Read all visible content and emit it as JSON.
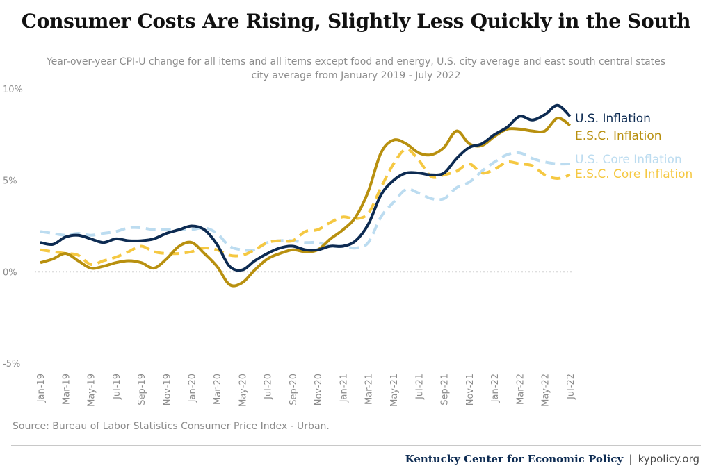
{
  "chart_data": {
    "type": "line",
    "title": "Consumer Costs Are Rising, Slightly Less Quickly in the South",
    "subtitle_lines": [
      "Year-over-year CPI-U change for all items and all items except food and energy, U.S. city average and east south central states",
      "city average from January 2019 - July 2022"
    ],
    "xlabel": "",
    "ylabel": "",
    "ylim": [
      -5,
      10
    ],
    "y_ticks": [
      "10%",
      "5%",
      "0%",
      "-5%"
    ],
    "y_tick_values": [
      10,
      5,
      0,
      -5
    ],
    "x_tick_labels": [
      "Jan-19",
      "Mar-19",
      "May-19",
      "Jul-19",
      "Sep-19",
      "Nov-19",
      "Jan-20",
      "Mar-20",
      "May-20",
      "Jul-20",
      "Sep-20",
      "Nov-20",
      "Jan-21",
      "Mar-21",
      "May-21",
      "Jul-21",
      "Sep-21",
      "Nov-21",
      "Jan-22",
      "Mar-22",
      "May-22",
      "Jul-22"
    ],
    "grid": false,
    "zero_line": "dotted",
    "legend": "direct labels at right end of lines",
    "series": [
      {
        "name": "U.S. Inflation",
        "color": "#0d2b52",
        "dash": "solid",
        "values": [
          1.6,
          1.5,
          1.9,
          2.0,
          1.8,
          1.6,
          1.8,
          1.7,
          1.7,
          1.8,
          2.1,
          2.3,
          2.5,
          2.3,
          1.5,
          0.3,
          0.1,
          0.6,
          1.0,
          1.3,
          1.4,
          1.2,
          1.2,
          1.4,
          1.4,
          1.7,
          2.6,
          4.2,
          5.0,
          5.4,
          5.4,
          5.3,
          5.4,
          6.2,
          6.8,
          7.0,
          7.5,
          7.9,
          8.5,
          8.3,
          8.6,
          9.1,
          8.5
        ]
      },
      {
        "name": "E.S.C. Inflation",
        "color": "#b8900f",
        "dash": "solid",
        "values": [
          0.5,
          0.7,
          1.0,
          0.6,
          0.2,
          0.3,
          0.5,
          0.6,
          0.5,
          0.2,
          0.7,
          1.4,
          1.6,
          1.0,
          0.3,
          -0.7,
          -0.6,
          0.1,
          0.7,
          1.0,
          1.2,
          1.1,
          1.2,
          1.8,
          2.3,
          3.0,
          4.4,
          6.5,
          7.2,
          7.0,
          6.5,
          6.4,
          6.8,
          7.7,
          7.0,
          6.9,
          7.4,
          7.8,
          7.8,
          7.7,
          7.7,
          8.4,
          8.0
        ]
      },
      {
        "name": "U.S. Core Inflation",
        "color": "#bcdcf0",
        "dash": "dashed",
        "values": [
          2.2,
          2.1,
          2.0,
          2.1,
          2.0,
          2.1,
          2.2,
          2.4,
          2.4,
          2.3,
          2.3,
          2.3,
          2.3,
          2.4,
          2.1,
          1.4,
          1.2,
          1.2,
          1.6,
          1.7,
          1.7,
          1.6,
          1.6,
          1.4,
          1.4,
          1.3,
          1.6,
          3.0,
          3.8,
          4.5,
          4.3,
          4.0,
          4.0,
          4.6,
          4.9,
          5.5,
          6.0,
          6.4,
          6.5,
          6.2,
          6.0,
          5.9,
          5.9
        ]
      },
      {
        "name": "E.S.C. Core Inflation",
        "color": "#f5c842",
        "dash": "dashed",
        "values": [
          1.2,
          1.1,
          1.0,
          0.9,
          0.4,
          0.6,
          0.8,
          1.1,
          1.4,
          1.1,
          1.0,
          1.0,
          1.1,
          1.3,
          1.2,
          0.9,
          0.9,
          1.2,
          1.6,
          1.7,
          1.7,
          2.2,
          2.3,
          2.7,
          3.0,
          2.9,
          3.2,
          4.6,
          5.9,
          6.7,
          6.1,
          5.2,
          5.3,
          5.5,
          5.9,
          5.4,
          5.6,
          6.0,
          5.9,
          5.8,
          5.3,
          5.1,
          5.3
        ]
      }
    ]
  },
  "source": "Source: Bureau of Labor Statistics Consumer Price Index - Urban.",
  "footer": {
    "org": "Kentucky Center for Economic Policy",
    "separator": "|",
    "url": "kypolicy.org"
  }
}
